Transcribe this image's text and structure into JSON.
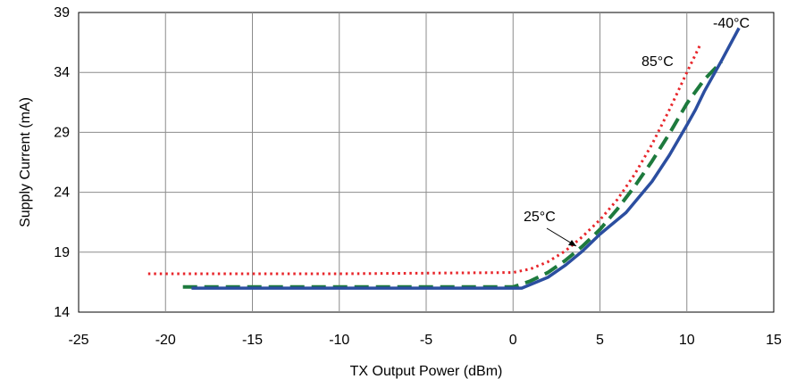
{
  "chart_data": {
    "type": "line",
    "title": "",
    "xlabel": "TX Output Power (dBm)",
    "ylabel": "Supply Current (mA)",
    "xlim": [
      -25,
      15
    ],
    "ylim": [
      14,
      39
    ],
    "xticks": [
      -25,
      -20,
      -15,
      -10,
      -5,
      0,
      5,
      10,
      15
    ],
    "yticks": [
      14,
      19,
      24,
      29,
      34,
      39
    ],
    "grid": true,
    "legend": "none",
    "series": [
      {
        "name": "85°C",
        "color": "#e8262b",
        "style": "dotted",
        "points": [
          [
            -21,
            17.2
          ],
          [
            -10,
            17.2
          ],
          [
            0,
            17.3
          ],
          [
            1,
            17.6
          ],
          [
            2,
            18.2
          ],
          [
            3,
            19.1
          ],
          [
            4,
            20.3
          ],
          [
            5,
            21.7
          ],
          [
            6,
            23.4
          ],
          [
            7,
            25.5
          ],
          [
            8,
            28.0
          ],
          [
            9,
            30.9
          ],
          [
            10,
            34.0
          ],
          [
            10.8,
            36.4
          ]
        ]
      },
      {
        "name": "25°C",
        "color": "#1d7a3d",
        "style": "dashed",
        "points": [
          [
            -19,
            16.1
          ],
          [
            -10,
            16.1
          ],
          [
            0,
            16.1
          ],
          [
            1,
            16.6
          ],
          [
            2,
            17.3
          ],
          [
            3,
            18.3
          ],
          [
            4,
            19.5
          ],
          [
            5,
            20.9
          ],
          [
            6,
            22.6
          ],
          [
            7,
            24.5
          ],
          [
            8,
            26.6
          ],
          [
            9,
            28.9
          ],
          [
            10,
            31.4
          ],
          [
            11,
            33.4
          ],
          [
            12,
            34.9
          ]
        ]
      },
      {
        "name": "-40°C",
        "color": "#2b4ea0",
        "style": "solid",
        "points": [
          [
            -18.5,
            16.0
          ],
          [
            -10,
            16.0
          ],
          [
            0,
            16.0
          ],
          [
            0.5,
            16.0
          ],
          [
            2,
            16.9
          ],
          [
            3,
            17.9
          ],
          [
            4,
            19.1
          ],
          [
            5,
            20.5
          ],
          [
            6.5,
            22.3
          ],
          [
            8,
            24.9
          ],
          [
            9,
            27.1
          ],
          [
            10,
            29.6
          ],
          [
            10.5,
            30.9
          ],
          [
            11,
            32.4
          ],
          [
            12,
            35.0
          ],
          [
            13,
            37.7
          ]
        ]
      }
    ],
    "annotations": [
      {
        "text": "-40°C",
        "for": "-40°C"
      },
      {
        "text": "85°C",
        "for": "85°C"
      },
      {
        "text": "25°C",
        "for": "25°C"
      }
    ]
  }
}
